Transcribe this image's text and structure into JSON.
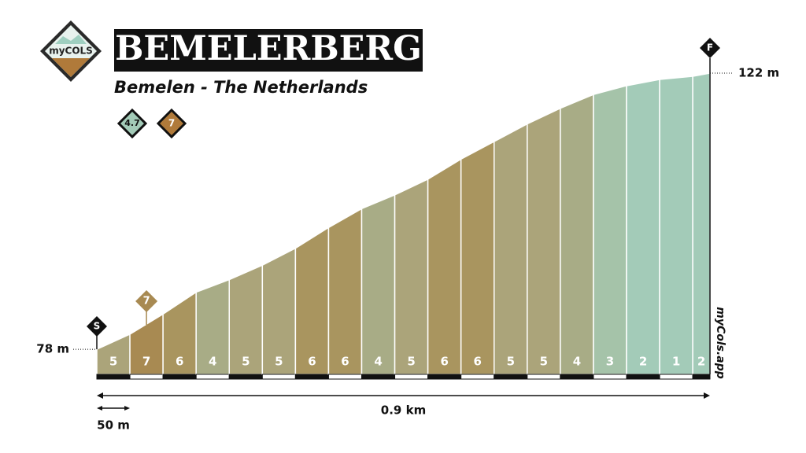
{
  "header": {
    "logo": "myCOLS",
    "title": "BEMELERBERG",
    "subtitle": "Bemelen - The Netherlands",
    "avg_gradient": "4.7",
    "max_gradient": "7"
  },
  "chart_data": {
    "type": "profile",
    "x": [
      0,
      50,
      100,
      150,
      200,
      250,
      300,
      350,
      400,
      450,
      500,
      550,
      600,
      650,
      700,
      750,
      800,
      850,
      900,
      926
    ],
    "elevation": [
      78,
      80.4,
      83.6,
      87.1,
      89.1,
      91.4,
      94.1,
      97.4,
      100.4,
      102.6,
      105.1,
      108.3,
      111.1,
      113.9,
      116.4,
      118.6,
      120,
      121,
      121.5,
      122
    ],
    "gradients": [
      5,
      7,
      6,
      4,
      5,
      5,
      6,
      6,
      4,
      5,
      6,
      6,
      5,
      5,
      4,
      3,
      2,
      1,
      2
    ],
    "palette": {
      "1": "#a3cbb8",
      "2": "#a3cbb8",
      "3": "#a5c3a9",
      "4": "#a8ac86",
      "5": "#aba47a",
      "6": "#a9955f",
      "7": "#a88a52"
    },
    "xlim": [
      0,
      926
    ],
    "ylim": [
      74,
      122
    ],
    "start_label": "78 m",
    "end_label": "122 m",
    "start_marker": "S",
    "finish_marker": "F",
    "max_marker": "7",
    "distance_label": "0.9 km",
    "scale_label": "50 m",
    "watermark": "myCols.app"
  }
}
